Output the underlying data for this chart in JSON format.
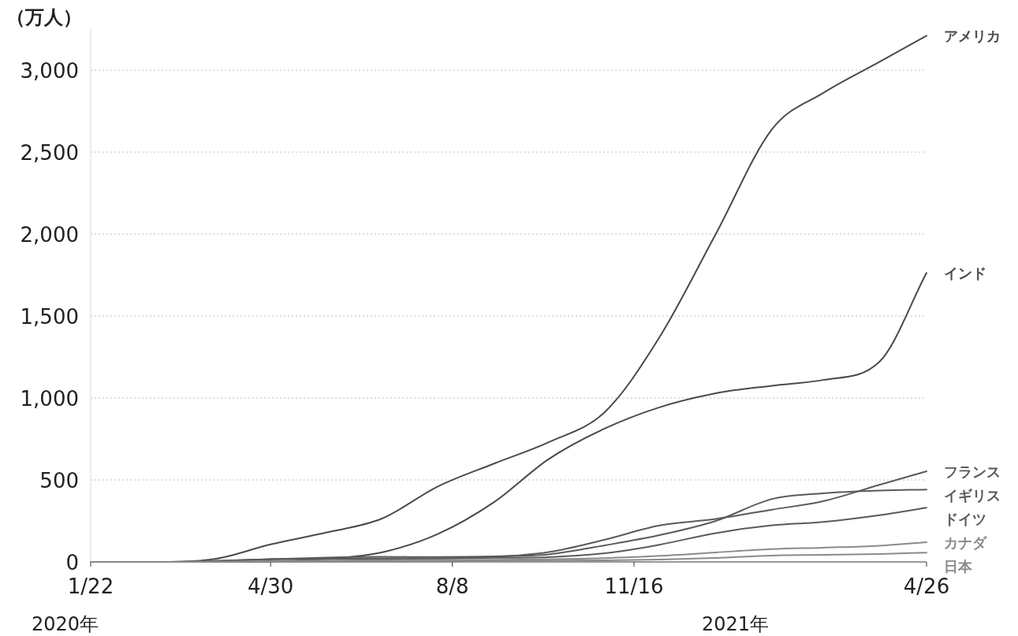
{
  "chart_data": {
    "type": "line",
    "ylabel": "（万人）",
    "xlim": [
      "2020-01-22",
      "2021-04-26"
    ],
    "xticks": [
      {
        "value": "2020-01-22",
        "label": "1/22"
      },
      {
        "value": "2020-04-30",
        "label": "4/30"
      },
      {
        "value": "2020-08-08",
        "label": "8/8"
      },
      {
        "value": "2020-11-16",
        "label": "11/16"
      },
      {
        "value": "2021-04-26",
        "label": "4/26"
      }
    ],
    "yticks": [
      {
        "value": 0,
        "label": "0"
      },
      {
        "value": 500,
        "label": "500"
      },
      {
        "value": 1000,
        "label": "1,000"
      },
      {
        "value": 1500,
        "label": "1,500"
      },
      {
        "value": 2000,
        "label": "2,000"
      },
      {
        "value": 2500,
        "label": "2,500"
      },
      {
        "value": 3000,
        "label": "3,000"
      }
    ],
    "ylim": [
      0,
      3250
    ],
    "grid": "y",
    "line_style": "solid",
    "x": [
      "2020-01-22",
      "2020-02-29",
      "2020-03-31",
      "2020-04-30",
      "2020-05-31",
      "2020-06-30",
      "2020-07-31",
      "2020-08-31",
      "2020-09-30",
      "2020-10-31",
      "2020-11-30",
      "2020-12-31",
      "2021-01-31",
      "2021-02-28",
      "2021-03-31",
      "2021-04-26"
    ],
    "series": [
      {
        "name": "アメリカ",
        "color": "#4a4a4a",
        "values": [
          0,
          0,
          19,
          107,
          180,
          263,
          460,
          600,
          730,
          915,
          1370,
          2000,
          2640,
          2860,
          3050,
          3210
        ]
      },
      {
        "name": "インド",
        "color": "#4a4a4a",
        "values": [
          0,
          0,
          0,
          3,
          19,
          58,
          170,
          365,
          627,
          814,
          943,
          1029,
          1075,
          1110,
          1220,
          1763
        ]
      },
      {
        "name": "フランス",
        "color": "#5a5a5a",
        "values": [
          0,
          0,
          5,
          17,
          19,
          20,
          22,
          30,
          60,
          136,
          222,
          262,
          319,
          370,
          470,
          553
        ]
      },
      {
        "name": "イギリス",
        "color": "#5a5a5a",
        "values": [
          0,
          0,
          3,
          17,
          27,
          31,
          30,
          34,
          46,
          101,
          163,
          250,
          384,
          418,
          435,
          441
        ]
      },
      {
        "name": "ドイツ",
        "color": "#5a5a5a",
        "values": [
          0,
          0,
          7,
          16,
          18,
          20,
          21,
          25,
          29,
          53,
          105,
          176,
          223,
          244,
          285,
          331
        ]
      },
      {
        "name": "カナダ",
        "color": "#8a8a8a",
        "values": [
          0,
          0,
          1,
          5,
          9,
          10,
          12,
          13,
          16,
          23,
          37,
          58,
          78,
          87,
          99,
          120
        ]
      },
      {
        "name": "日本",
        "color": "#8a8a8a",
        "values": [
          0,
          0,
          0,
          1,
          2,
          2,
          4,
          7,
          8,
          10,
          15,
          24,
          39,
          43,
          48,
          57
        ]
      }
    ],
    "annotations": [
      "2020年",
      "2021年"
    ]
  }
}
